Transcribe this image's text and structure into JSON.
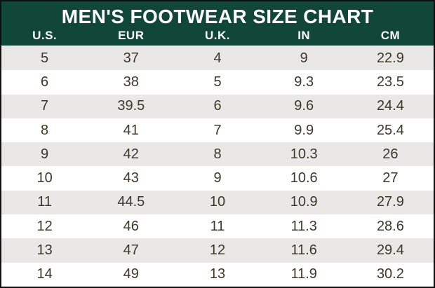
{
  "chart_data": {
    "type": "table",
    "title": "MEN'S FOOTWEAR SIZE CHART",
    "columns": [
      "U.S.",
      "EUR",
      "U.K.",
      "IN",
      "CM"
    ],
    "rows": [
      [
        "5",
        "37",
        "4",
        "9",
        "22.9"
      ],
      [
        "6",
        "38",
        "5",
        "9.3",
        "23.5"
      ],
      [
        "7",
        "39.5",
        "6",
        "9.6",
        "24.4"
      ],
      [
        "8",
        "41",
        "7",
        "9.9",
        "25.4"
      ],
      [
        "9",
        "42",
        "8",
        "10.3",
        "26"
      ],
      [
        "10",
        "43",
        "9",
        "10.6",
        "27"
      ],
      [
        "11",
        "44.5",
        "10",
        "10.9",
        "27.9"
      ],
      [
        "12",
        "46",
        "11",
        "11.3",
        "28.6"
      ],
      [
        "13",
        "47",
        "12",
        "11.6",
        "29.4"
      ],
      [
        "14",
        "49",
        "13",
        "11.9",
        "30.2"
      ]
    ],
    "layout": {
      "striping": "odd-rows-gray",
      "first_row_style": "gray",
      "text_align": "center"
    }
  },
  "colors": {
    "header_bg": "#114736",
    "header_text": "#ffffff",
    "row_alt": "#e9e8e6",
    "row_text": "#3f3728",
    "border": "#101010"
  }
}
